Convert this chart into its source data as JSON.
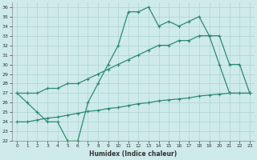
{
  "xlabel": "Humidex (Indice chaleur)",
  "bg_color": "#ceeaea",
  "line_color": "#2e8b70",
  "grid_color": "#aed4d4",
  "xlim": [
    -0.5,
    23.5
  ],
  "ylim": [
    22,
    36.5
  ],
  "xticks": [
    0,
    1,
    2,
    3,
    4,
    5,
    6,
    7,
    8,
    9,
    10,
    11,
    12,
    13,
    14,
    15,
    16,
    17,
    18,
    19,
    20,
    21,
    22,
    23
  ],
  "yticks": [
    22,
    23,
    24,
    25,
    26,
    27,
    28,
    29,
    30,
    31,
    32,
    33,
    34,
    35,
    36
  ],
  "lines": [
    {
      "x": [
        0,
        1,
        2,
        3,
        4,
        5,
        6,
        7,
        8,
        9,
        10,
        11,
        12,
        13,
        14,
        15,
        16,
        17,
        18,
        19,
        20,
        21,
        23
      ],
      "y": [
        27,
        26,
        25,
        24,
        24,
        22,
        22,
        26,
        28,
        30,
        32,
        35.5,
        35.5,
        36,
        34,
        34.5,
        34,
        34.5,
        35,
        33,
        30,
        27,
        27
      ]
    },
    {
      "x": [
        0,
        1,
        2,
        3,
        4,
        5,
        6,
        7,
        8,
        9,
        10,
        11,
        12,
        13,
        14,
        15,
        16,
        17,
        18,
        19,
        20,
        21,
        22,
        23
      ],
      "y": [
        27,
        27,
        27,
        27.5,
        27.5,
        28,
        28,
        28.5,
        29,
        29.5,
        30,
        30.5,
        31,
        31.5,
        32,
        32,
        32.5,
        32.5,
        33,
        33,
        33,
        30,
        30,
        27
      ]
    },
    {
      "x": [
        0,
        1,
        2,
        3,
        4,
        5,
        6,
        7,
        8,
        9,
        10,
        11,
        12,
        13,
        14,
        15,
        16,
        17,
        18,
        19,
        20,
        21,
        22,
        23
      ],
      "y": [
        24,
        24,
        24.2,
        24.4,
        24.5,
        24.7,
        24.9,
        25.1,
        25.2,
        25.4,
        25.5,
        25.7,
        25.9,
        26.0,
        26.2,
        26.3,
        26.4,
        26.5,
        26.7,
        26.8,
        26.9,
        27.0,
        27.0,
        27.0
      ]
    }
  ]
}
